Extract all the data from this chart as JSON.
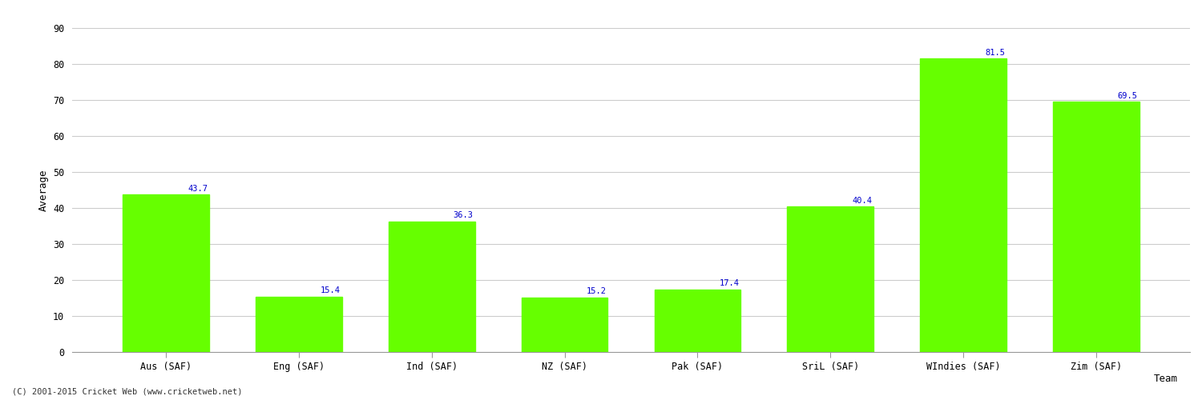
{
  "categories": [
    "Aus (SAF)",
    "Eng (SAF)",
    "Ind (SAF)",
    "NZ (SAF)",
    "Pak (SAF)",
    "SriL (SAF)",
    "WIndies (SAF)",
    "Zim (SAF)"
  ],
  "values": [
    43.7,
    15.4,
    36.3,
    15.2,
    17.4,
    40.4,
    81.5,
    69.5
  ],
  "bar_color": "#66ff00",
  "bar_edge_color": "#66ff00",
  "label_color": "#0000cc",
  "xlabel": "Team",
  "ylabel": "Average",
  "ylim": [
    0,
    90
  ],
  "yticks": [
    0,
    10,
    20,
    30,
    40,
    50,
    60,
    70,
    80,
    90
  ],
  "grid_color": "#cccccc",
  "background_color": "#ffffff",
  "footer": "(C) 2001-2015 Cricket Web (www.cricketweb.net)",
  "title_fontsize": 11,
  "axis_label_fontsize": 9,
  "tick_label_fontsize": 8.5,
  "value_label_fontsize": 7.5
}
